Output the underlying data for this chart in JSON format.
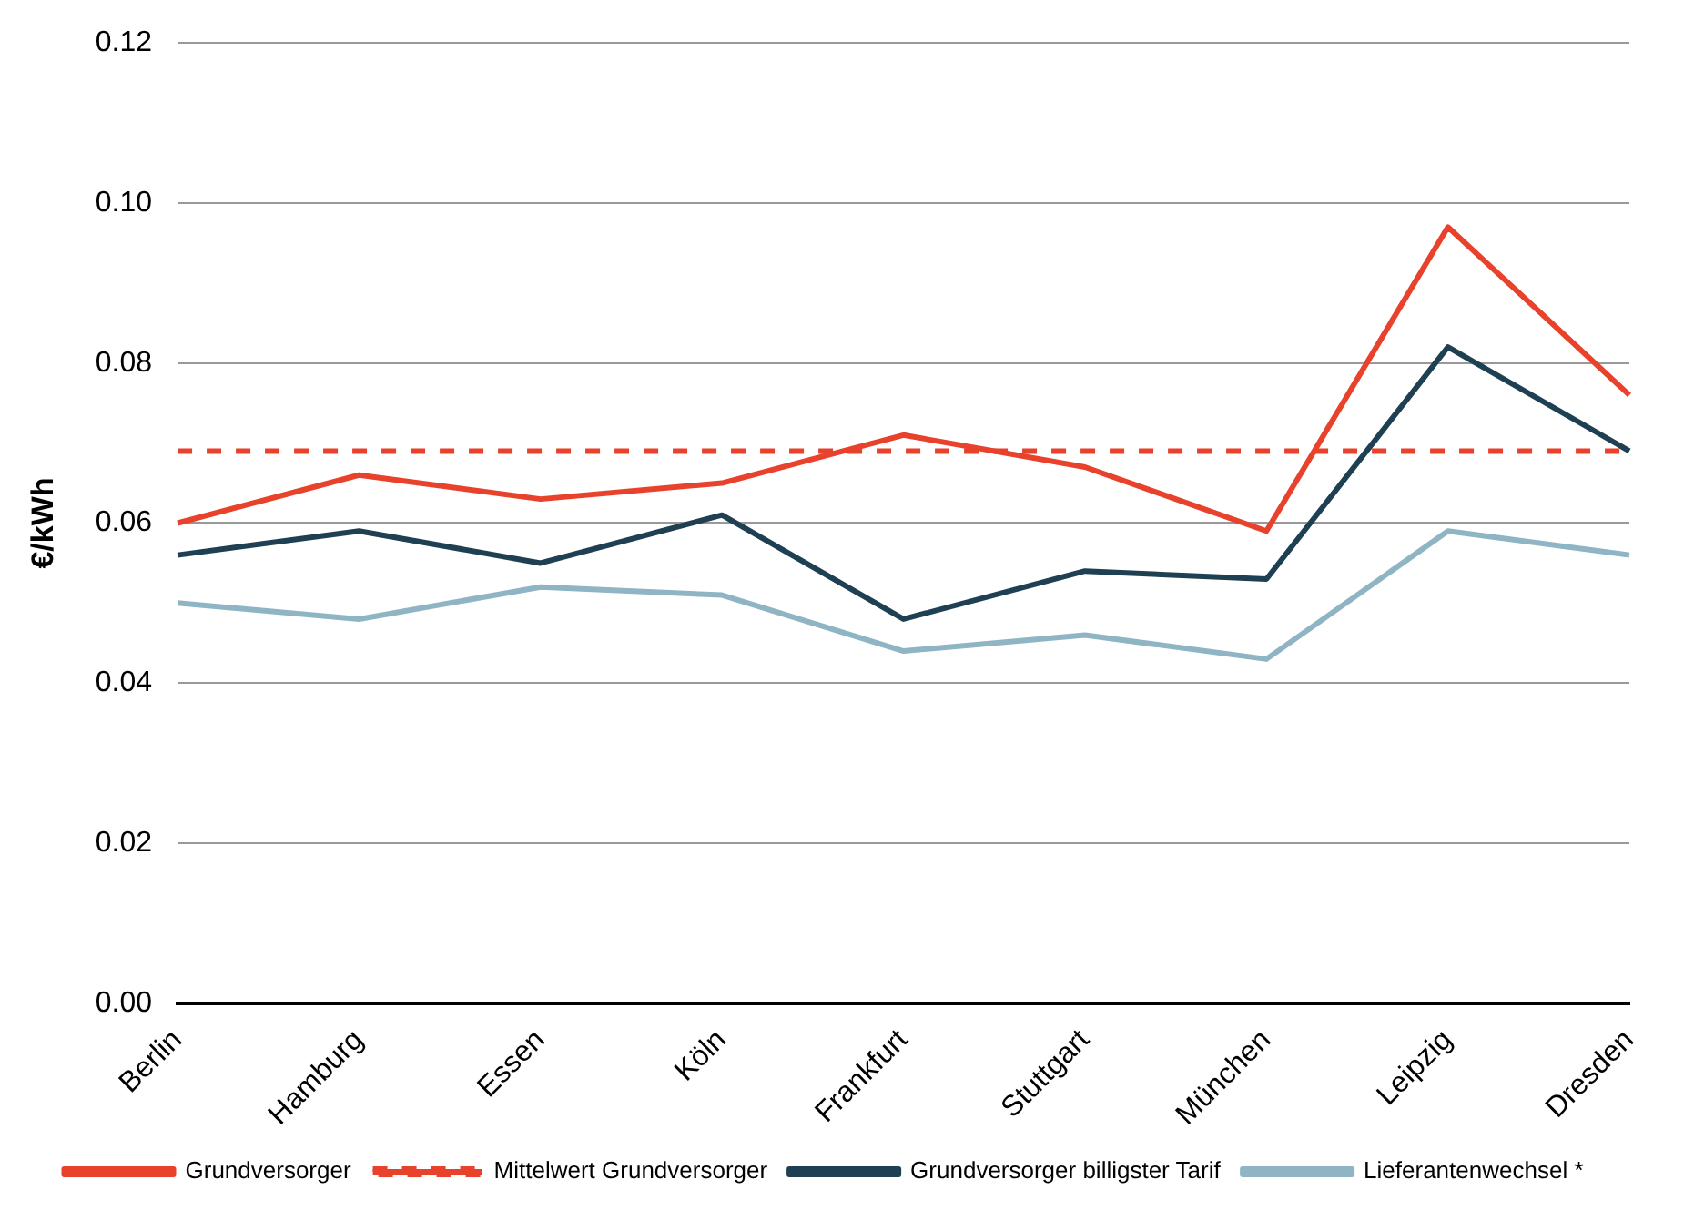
{
  "chart_data": {
    "type": "line",
    "ylabel": "€/kWh",
    "categories": [
      "Berlin",
      "Hamburg",
      "Essen",
      "Köln",
      "Frankfurt",
      "Stuttgart",
      "München",
      "Leipzig",
      "Dresden"
    ],
    "series": [
      {
        "name": "Grundversorger",
        "color": "#e8412c",
        "values": [
          0.06,
          0.066,
          0.063,
          0.065,
          0.071,
          0.067,
          0.059,
          0.097,
          0.076
        ]
      },
      {
        "name": "Mittelwert Grundversorger",
        "color": "#e8412c",
        "line_style": "dashed",
        "values": [
          0.069,
          0.069,
          0.069,
          0.069,
          0.069,
          0.069,
          0.069,
          0.069,
          0.069
        ]
      },
      {
        "name": "Grundversorger billigster Tarif",
        "color": "#1f3f52",
        "values": [
          0.056,
          0.059,
          0.055,
          0.061,
          0.048,
          0.054,
          0.053,
          0.082,
          0.069
        ]
      },
      {
        "name": "Lieferantenwechsel *",
        "color": "#8fb4c4",
        "values": [
          0.05,
          0.048,
          0.052,
          0.051,
          0.044,
          0.046,
          0.043,
          0.059,
          0.056
        ]
      }
    ],
    "ylim": [
      0,
      0.12
    ],
    "yticks": [
      {
        "value": 0,
        "label": "0.00"
      },
      {
        "value": 0.02,
        "label": "0.02"
      },
      {
        "value": 0.04,
        "label": "0.04"
      },
      {
        "value": 0.06,
        "label": "0.06"
      },
      {
        "value": 0.08,
        "label": "0.08"
      },
      {
        "value": 0.1,
        "label": "0.10"
      },
      {
        "value": 0.12,
        "label": "0.12"
      }
    ],
    "grid": "y",
    "legend": "bottom",
    "marker": "none",
    "line_style": "solid"
  }
}
